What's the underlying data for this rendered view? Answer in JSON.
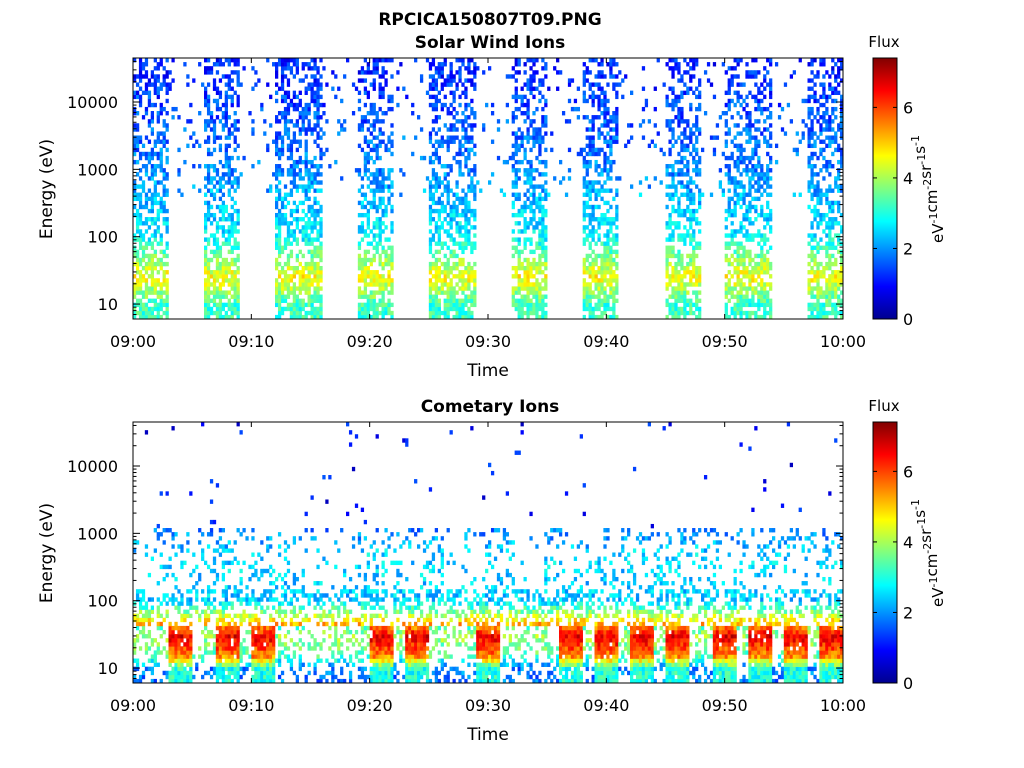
{
  "figure": {
    "title": "RPCICA150807T09.PNG"
  },
  "colorbar": {
    "title": "Flux",
    "ticks": [
      "0",
      "2",
      "4",
      "6"
    ],
    "range": [
      0,
      7.4
    ],
    "unit_parts": [
      "eV",
      "-1",
      "cm",
      "-2",
      "sr",
      "-1",
      "s",
      "-1"
    ],
    "colormap": "jet"
  },
  "chart_data": [
    {
      "type": "heatmap",
      "title": "Solar Wind Ions",
      "xlabel": "Time",
      "ylabel": "Energy (eV)",
      "y_scale": "log",
      "xlim": [
        "09:00",
        "10:00"
      ],
      "ylim": [
        6,
        45000
      ],
      "x_ticks": [
        "09:00",
        "09:10",
        "09:20",
        "09:30",
        "09:40",
        "09:50",
        "10:00"
      ],
      "y_ticks": [
        "10",
        "100",
        "1000",
        "10000"
      ],
      "grid": false,
      "colorbar": "right",
      "scan_windows": [
        {
          "start": "09:00",
          "end": "09:03"
        },
        {
          "start": "09:06",
          "end": "09:09"
        },
        {
          "start": "09:12",
          "end": "09:16"
        },
        {
          "start": "09:19",
          "end": "09:22"
        },
        {
          "start": "09:25",
          "end": "09:29"
        },
        {
          "start": "09:32",
          "end": "09:35"
        },
        {
          "start": "09:38",
          "end": "09:41"
        },
        {
          "start": "09:45",
          "end": "09:48"
        },
        {
          "start": "09:50",
          "end": "09:54"
        },
        {
          "start": "09:57",
          "end": "10:00"
        }
      ],
      "flux_profile": [
        {
          "energy_eV": 10,
          "flux": 3.2
        },
        {
          "energy_eV": 25,
          "flux": 4.6
        },
        {
          "energy_eV": 100,
          "flux": 2.7
        },
        {
          "energy_eV": 1000,
          "flux": 1.9
        },
        {
          "energy_eV": 10000,
          "flux": 1.4
        },
        {
          "energy_eV": 30000,
          "flux": 1.2
        }
      ]
    },
    {
      "type": "heatmap",
      "title": "Cometary Ions",
      "xlabel": "Time",
      "ylabel": "Energy (eV)",
      "y_scale": "log",
      "xlim": [
        "09:00",
        "10:00"
      ],
      "ylim": [
        6,
        45000
      ],
      "x_ticks": [
        "09:00",
        "09:10",
        "09:20",
        "09:30",
        "09:40",
        "09:50",
        "10:00"
      ],
      "y_ticks": [
        "10",
        "100",
        "1000",
        "10000"
      ],
      "grid": false,
      "colorbar": "right",
      "peak_times": [
        "09:04",
        "09:08",
        "09:11",
        "09:21",
        "09:24",
        "09:30",
        "09:37",
        "09:40",
        "09:43",
        "09:46",
        "09:50",
        "09:53",
        "09:56",
        "09:59"
      ],
      "flux_profile": [
        {
          "energy_eV": 10,
          "flux": 3.0
        },
        {
          "energy_eV": 15,
          "flux": 5.5
        },
        {
          "energy_eV": 30,
          "flux": 6.6
        },
        {
          "energy_eV": 100,
          "flux": 2.4
        },
        {
          "energy_eV": 500,
          "flux": 2.5
        },
        {
          "energy_eV": 3000,
          "flux": 1.0
        }
      ]
    }
  ]
}
